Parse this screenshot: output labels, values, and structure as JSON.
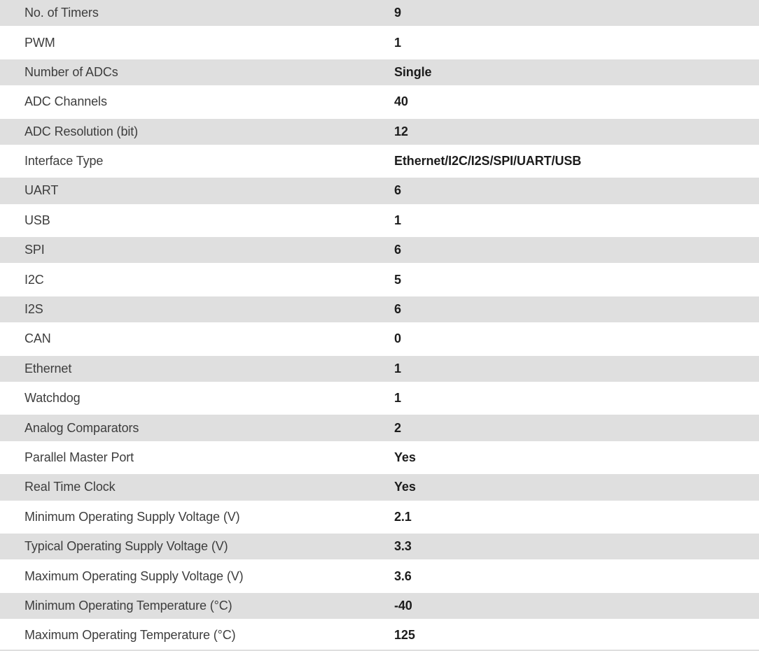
{
  "colors": {
    "row_alt_bg": "#dfdfdf",
    "row_bg": "#ffffff",
    "label_color": "#3d3d3d",
    "value_color": "#1c1c1c"
  },
  "table": {
    "rows": [
      {
        "label": "No. of Timers",
        "value": "9"
      },
      {
        "label": "PWM",
        "value": "1"
      },
      {
        "label": "Number of ADCs",
        "value": "Single"
      },
      {
        "label": "ADC Channels",
        "value": "40"
      },
      {
        "label": "ADC Resolution (bit)",
        "value": "12"
      },
      {
        "label": "Interface Type",
        "value": "Ethernet/I2C/I2S/SPI/UART/USB"
      },
      {
        "label": "UART",
        "value": "6"
      },
      {
        "label": "USB",
        "value": "1"
      },
      {
        "label": "SPI",
        "value": "6"
      },
      {
        "label": "I2C",
        "value": "5"
      },
      {
        "label": "I2S",
        "value": "6"
      },
      {
        "label": "CAN",
        "value": "0"
      },
      {
        "label": "Ethernet",
        "value": "1"
      },
      {
        "label": "Watchdog",
        "value": "1"
      },
      {
        "label": "Analog Comparators",
        "value": "2"
      },
      {
        "label": "Parallel Master Port",
        "value": "Yes"
      },
      {
        "label": "Real Time Clock",
        "value": "Yes"
      },
      {
        "label": "Minimum Operating Supply Voltage (V)",
        "value": "2.1"
      },
      {
        "label": "Typical Operating Supply Voltage (V)",
        "value": "3.3"
      },
      {
        "label": "Maximum Operating Supply Voltage (V)",
        "value": "3.6"
      },
      {
        "label": "Minimum Operating Temperature (°C)",
        "value": "-40"
      },
      {
        "label": "Maximum Operating Temperature (°C)",
        "value": "125"
      }
    ]
  }
}
